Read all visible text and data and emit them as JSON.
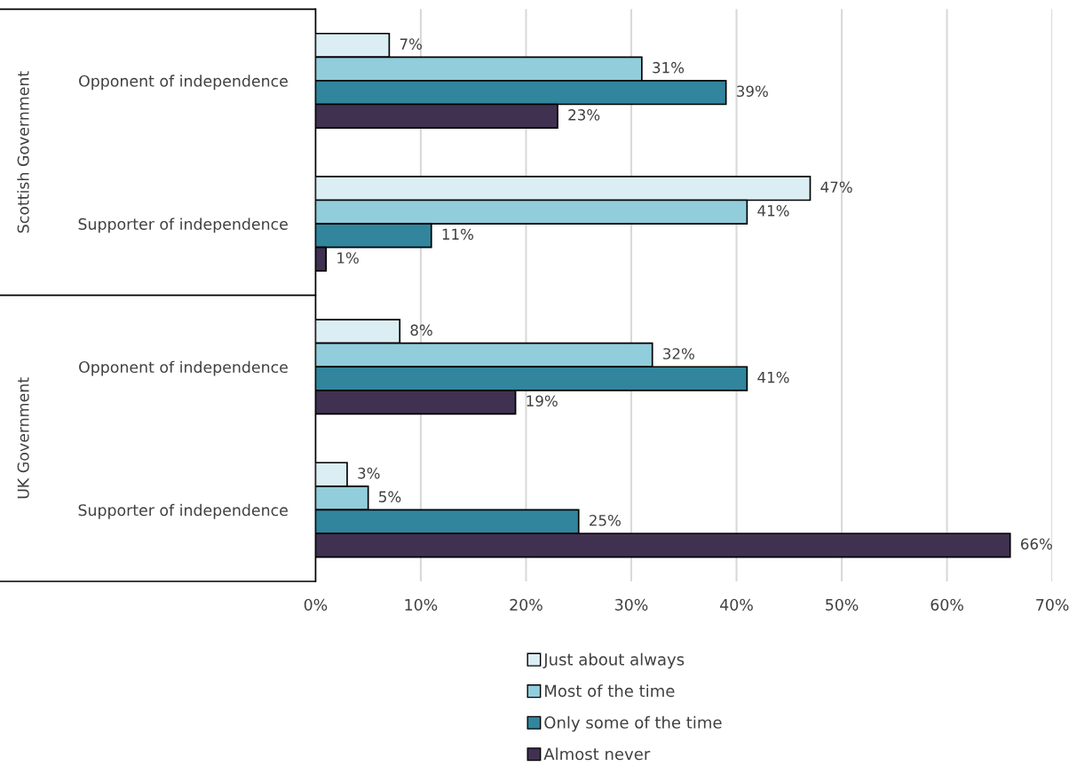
{
  "chart_data": {
    "type": "bar",
    "orientation": "horizontal",
    "categories": [
      "Opponent of independence",
      "Supporter of independence",
      "Opponent of independence",
      "Supporter of independence"
    ],
    "annotations": [
      "Scottish Government",
      "UK Government"
    ],
    "series": [
      {
        "name": "Just about always",
        "color": "#dbeef3",
        "values": [
          7,
          47,
          8,
          3
        ],
        "value_labels": [
          "7%",
          "47%",
          "8%",
          "3%"
        ]
      },
      {
        "name": "Most of the time",
        "color": "#92cddc",
        "values": [
          31,
          41,
          32,
          5
        ],
        "value_labels": [
          "31%",
          "41%",
          "32%",
          "5%"
        ]
      },
      {
        "name": "Only some of the time",
        "color": "#31859c",
        "values": [
          39,
          11,
          41,
          25
        ],
        "value_labels": [
          "39%",
          "11%",
          "41%",
          "25%"
        ]
      },
      {
        "name": "Almost never",
        "color": "#403151",
        "values": [
          23,
          1,
          19,
          66
        ],
        "value_labels": [
          "23%",
          "1%",
          "19%",
          "66%"
        ]
      }
    ],
    "xlim": [
      0,
      70
    ],
    "xticks": [
      {
        "value": 0,
        "label": "0%"
      },
      {
        "value": 10,
        "label": "10%"
      },
      {
        "value": 20,
        "label": "20%"
      },
      {
        "value": 30,
        "label": "30%"
      },
      {
        "value": 40,
        "label": "40%"
      },
      {
        "value": 50,
        "label": "50%"
      },
      {
        "value": 60,
        "label": "60%"
      },
      {
        "value": 70,
        "label": "70%"
      }
    ],
    "grid": "x",
    "legend": "bottom"
  }
}
